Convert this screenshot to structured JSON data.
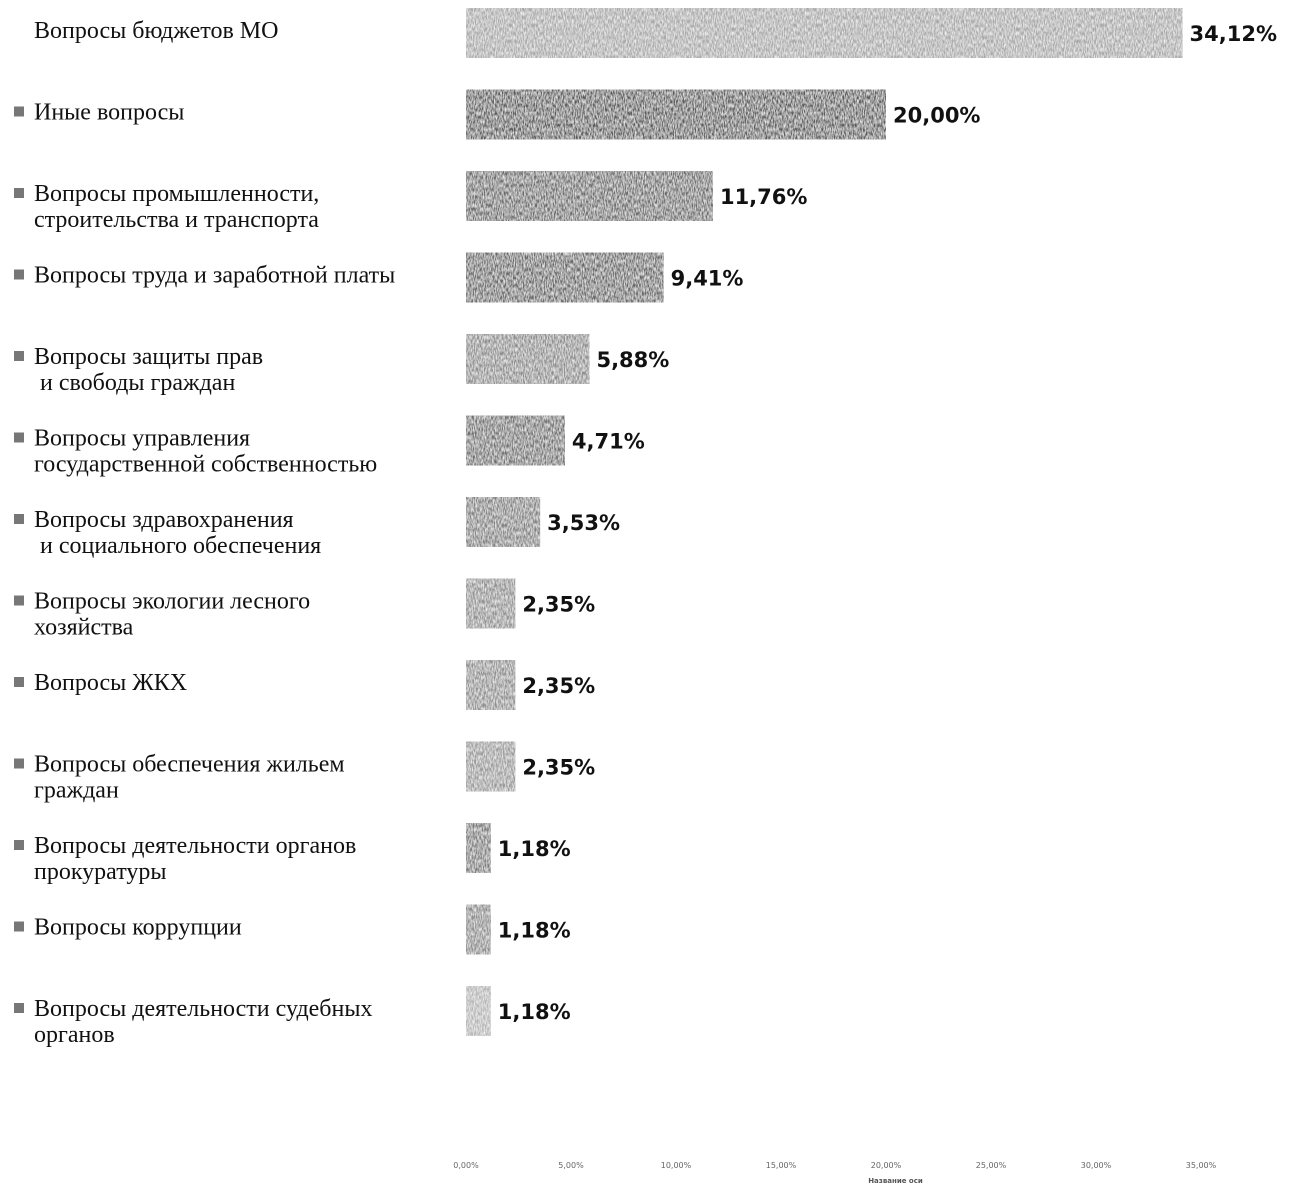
{
  "chart_data": {
    "type": "bar",
    "orientation": "horizontal",
    "categories": [
      "Вопросы бюджетов МО",
      "Иные вопросы",
      "Вопросы промышленности, строительства  и транспорта",
      "Вопросы труда и заработной платы",
      "Вопросы защиты прав и свободы граждан",
      "Вопросы управления государственной собственностью",
      "Вопросы здравохранения и социального обеспечения",
      "Вопросы экологии лесного хозяйства",
      "Вопросы ЖКХ",
      "Вопросы обеспечения жильем граждан",
      "Вопросы деятельности органов прокуратуры",
      "Вопросы коррупции",
      "Вопросы деятельности судебных органов"
    ],
    "category_lines": [
      [
        "Вопросы бюджетов МО"
      ],
      [
        "Иные вопросы"
      ],
      [
        "Вопросы промышленности,",
        "строительства  и транспорта"
      ],
      [
        "Вопросы труда и заработной платы"
      ],
      [
        "Вопросы защиты прав",
        " и свободы граждан"
      ],
      [
        "Вопросы управления",
        "государственной собственностью"
      ],
      [
        "Вопросы здравохранения",
        " и социального обеспечения"
      ],
      [
        "Вопросы экологии лесного",
        "хозяйства"
      ],
      [
        "Вопросы ЖКХ"
      ],
      [
        "Вопросы обеспечения жильем",
        "граждан"
      ],
      [
        "Вопросы деятельности органов",
        "прокуратуры"
      ],
      [
        "Вопросы коррупции"
      ],
      [
        "Вопросы деятельности судебных",
        "органов"
      ]
    ],
    "values": [
      34.12,
      20.0,
      11.76,
      9.41,
      5.88,
      4.71,
      3.53,
      2.35,
      2.35,
      2.35,
      1.18,
      1.18,
      1.18
    ],
    "data_labels": [
      "34,12%",
      "20,00%",
      "11,76%",
      "9,41%",
      "5,88%",
      "4,71%",
      "3,53%",
      "2,35%",
      "2,35%",
      "2,35%",
      "1,18%",
      "1,18%",
      "1,18%"
    ],
    "xlim": [
      0,
      35
    ],
    "x_ticks": [
      0,
      5,
      10,
      15,
      20,
      25,
      30,
      35
    ],
    "x_tick_labels": [
      "0,00%",
      "5,00%",
      "10,00%",
      "15,00%",
      "20,00%",
      "25,00%",
      "30,00%",
      "35,00%"
    ],
    "xlabel": "Название оси",
    "grid": false,
    "bar_colors": [
      "#a8a8a8",
      "#5a5a5a",
      "#6a6a6a",
      "#666666",
      "#8c8c8c",
      "#707070",
      "#808080",
      "#909090",
      "#8f8f8f",
      "#999999",
      "#7a7a7a",
      "#8a8a8a",
      "#b5b5b5"
    ]
  }
}
